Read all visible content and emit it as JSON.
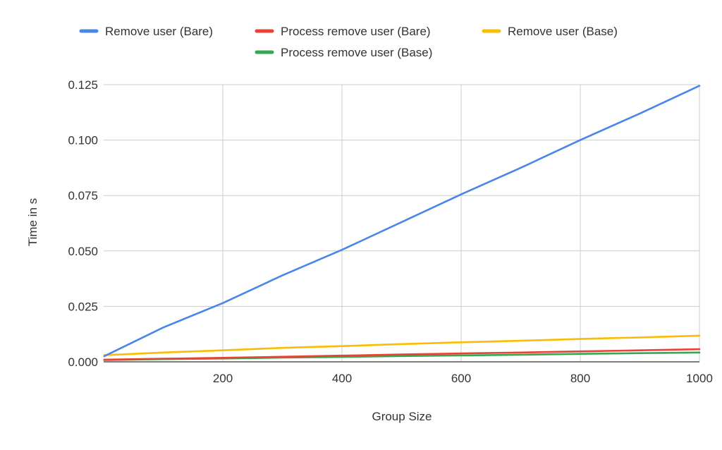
{
  "chart_data": {
    "type": "line",
    "title": "",
    "xlabel": "Group Size",
    "ylabel": "Time in s",
    "xlim": [
      0,
      1000
    ],
    "ylim": [
      0,
      0.125
    ],
    "x_ticks": [
      200,
      400,
      600,
      800,
      1000
    ],
    "y_ticks": [
      0,
      0.025,
      0.05,
      0.075,
      0.1,
      0.125
    ],
    "x_tick_labels": [
      "200",
      "400",
      "600",
      "800",
      "1000"
    ],
    "y_tick_labels": [
      "0.000",
      "0.025",
      "0.050",
      "0.075",
      "0.100",
      "0.125"
    ],
    "grid": true,
    "legend_position": "top",
    "x": [
      1,
      100,
      200,
      300,
      400,
      500,
      600,
      700,
      800,
      900,
      1000
    ],
    "series": [
      {
        "name": "Remove user (Bare)",
        "color": "#4a86e8",
        "values": [
          0.0025,
          0.0155,
          0.0265,
          0.039,
          0.0505,
          0.063,
          0.0755,
          0.0875,
          0.1,
          0.112,
          0.1245
        ]
      },
      {
        "name": "Process remove user (Bare)",
        "color": "#ea4335",
        "values": [
          0.001,
          0.0014,
          0.0018,
          0.0023,
          0.0028,
          0.0033,
          0.0038,
          0.0042,
          0.0047,
          0.0052,
          0.0057
        ]
      },
      {
        "name": "Remove user (Base)",
        "color": "#fbbc04",
        "values": [
          0.003,
          0.0042,
          0.0052,
          0.0063,
          0.0071,
          0.008,
          0.0088,
          0.0095,
          0.0103,
          0.011,
          0.0118
        ]
      },
      {
        "name": "Process remove user (Base)",
        "color": "#34a853",
        "values": [
          0.0008,
          0.0012,
          0.0015,
          0.0019,
          0.0022,
          0.0026,
          0.0029,
          0.0032,
          0.0036,
          0.0039,
          0.0042
        ]
      }
    ]
  }
}
